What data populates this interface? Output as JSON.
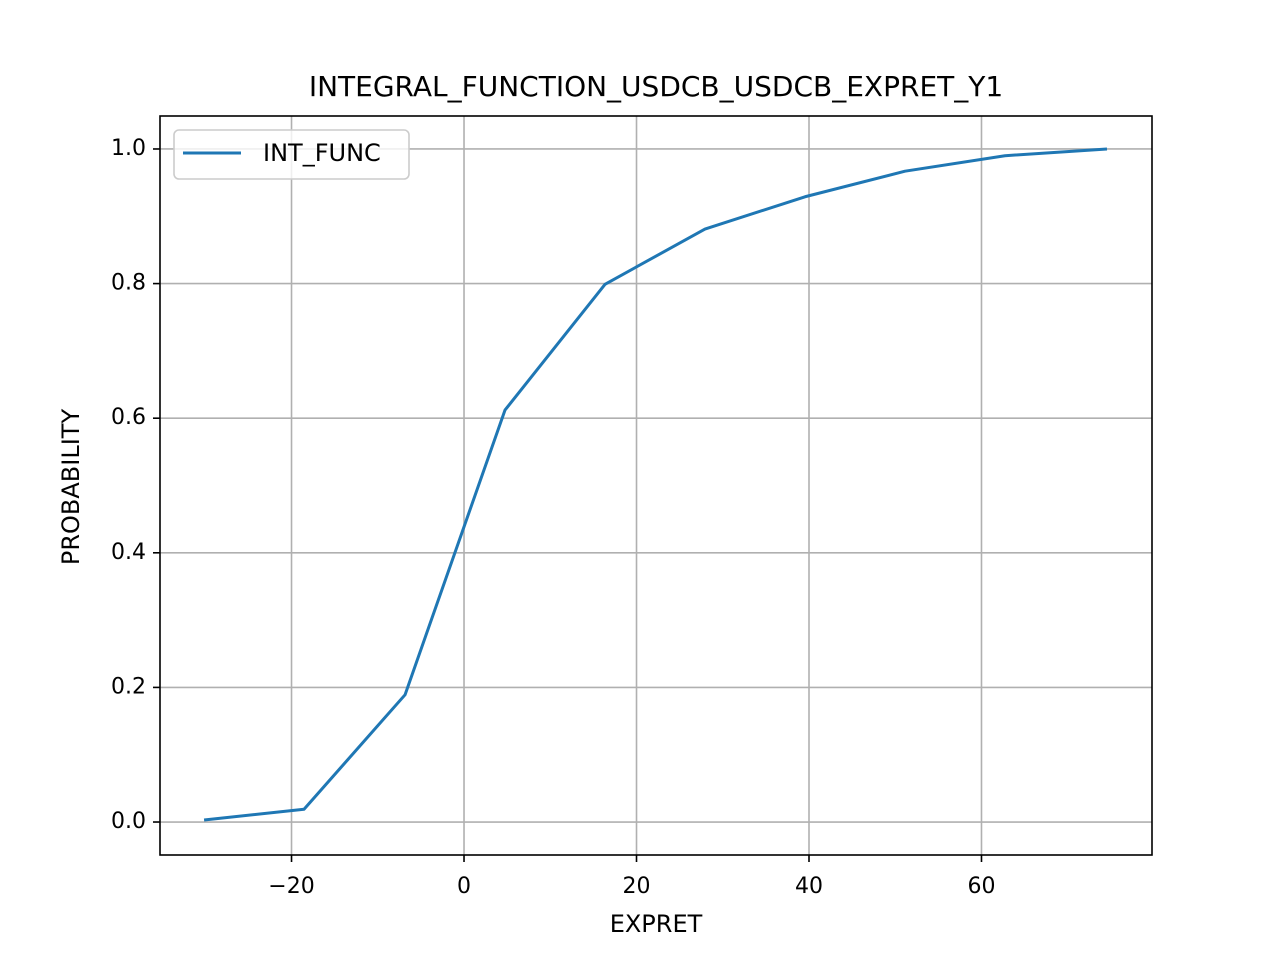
{
  "chart_data": {
    "type": "line",
    "title": "INTEGRAL_FUNCTION_USDCB_USDCB_EXPRET_Y1",
    "x_label": "EXPRET",
    "y_label": "PROBABILITY",
    "x": [
      -30.14,
      -18.55,
      -6.84,
      4.75,
      16.35,
      27.94,
      39.54,
      51.13,
      62.72,
      74.55
    ],
    "series": [
      {
        "name": "INT_FUNC",
        "color": "#1f77b4",
        "values": [
          0.003,
          0.019,
          0.189,
          0.612,
          0.799,
          0.881,
          0.929,
          0.967,
          0.99,
          1.0
        ]
      }
    ],
    "xlim": [
      -35.25,
      79.77
    ],
    "ylim": [
      -0.049,
      1.049
    ],
    "xticks": [
      {
        "value": -20,
        "label": "−20"
      },
      0,
      20,
      40,
      60
    ],
    "yticks": [
      {
        "value": 0,
        "label": "0.0"
      },
      {
        "value": 0.2,
        "label": "0.2"
      },
      {
        "value": 0.4,
        "label": "0.4"
      },
      {
        "value": 0.6,
        "label": "0.6"
      },
      {
        "value": 0.8,
        "label": "0.8"
      },
      {
        "value": 1,
        "label": "1.0"
      }
    ],
    "grid": true,
    "legend_position": "upper-left"
  }
}
